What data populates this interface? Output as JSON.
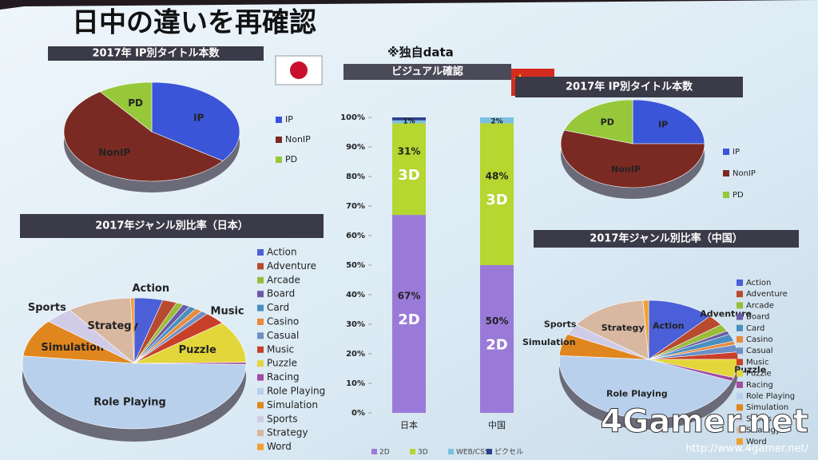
{
  "slide": {
    "title": "日中の違いを再確認",
    "note": "※独自data",
    "watermark": "4Gamer.net",
    "url": "http://www.4gamer.net/"
  },
  "chart_data": [
    {
      "type": "pie",
      "title": "2017年 IP別タイトル本数",
      "categories": [
        "IP",
        "NonIP",
        "PD"
      ],
      "values": [
        35,
        55,
        10
      ],
      "colors": [
        "#3a55d8",
        "#7a2a22",
        "#96c83a"
      ]
    },
    {
      "type": "pie",
      "title": "2017年ジャンル別比率（日本）",
      "categories": [
        "Action",
        "Adventure",
        "Arcade",
        "Board",
        "Card",
        "Casino",
        "Casual",
        "Music",
        "Puzzle",
        "Racing",
        "Role Playing",
        "Simulation",
        "Sports",
        "Strategy",
        "Word"
      ],
      "values": [
        4,
        2,
        1,
        1,
        1,
        1,
        1,
        3,
        10,
        0.5,
        50,
        9,
        4,
        9,
        0.5
      ],
      "colors": [
        "#4a5fd8",
        "#b84a2e",
        "#9bbb3a",
        "#6a5aa8",
        "#4a8fc0",
        "#e88a3a",
        "#6d8fc8",
        "#c8402a",
        "#e2d63a",
        "#a04aa0",
        "#b8d0ec",
        "#e0861e",
        "#d0cce8",
        "#d8b8a0",
        "#f0a030"
      ]
    },
    {
      "type": "bar",
      "stacked": true,
      "title": "ビジュアル確認",
      "categories": [
        "日本",
        "中国"
      ],
      "series": [
        {
          "name": "2D",
          "color": "#9a7ad8",
          "values": [
            67,
            50
          ],
          "value_labels": [
            "67%",
            "50%"
          ]
        },
        {
          "name": "3D",
          "color": "#b6d630",
          "values": [
            31,
            48
          ],
          "value_labels": [
            "31%",
            "48%"
          ]
        },
        {
          "name": "WEB/CSS",
          "color": "#7cc0e0",
          "values": [
            1,
            2
          ],
          "value_labels": [
            null,
            "2%"
          ]
        },
        {
          "name": "ピクセル",
          "color": "#2c3e8c",
          "values": [
            1,
            0
          ],
          "value_labels": [
            "1%",
            null
          ]
        }
      ],
      "ylim": [
        0,
        100
      ],
      "yticks": [
        {
          "value": 0,
          "label": "0%"
        },
        {
          "value": 10,
          "label": "10%"
        },
        {
          "value": 20,
          "label": "20%"
        },
        {
          "value": 30,
          "label": "30%"
        },
        {
          "value": 40,
          "label": "40%"
        },
        {
          "value": 50,
          "label": "50%"
        },
        {
          "value": 60,
          "label": "60%"
        },
        {
          "value": 70,
          "label": "70%"
        },
        {
          "value": 80,
          "label": "80%"
        },
        {
          "value": 90,
          "label": "90%"
        },
        {
          "value": 100,
          "label": "100%"
        }
      ]
    },
    {
      "type": "pie",
      "title": "2017年 IP別タイトル本数",
      "categories": [
        "IP",
        "NonIP",
        "PD"
      ],
      "values": [
        25,
        55,
        20
      ],
      "colors": [
        "#3a55d8",
        "#7a2a22",
        "#96c83a"
      ]
    },
    {
      "type": "pie",
      "title": "2017年ジャンル別比率（中国）",
      "categories": [
        "Action",
        "Adventure",
        "Arcade",
        "Board",
        "Card",
        "Casino",
        "Casual",
        "Music",
        "Puzzle",
        "Racing",
        "Role Playing",
        "Simulation",
        "Sports",
        "Strategy",
        "Word"
      ],
      "values": [
        12,
        3,
        2,
        1,
        2,
        1,
        2,
        2,
        5,
        1,
        45,
        6,
        3,
        14,
        1
      ],
      "colors": [
        "#4a5fd8",
        "#b84a2e",
        "#9bbb3a",
        "#6a5aa8",
        "#4a8fc0",
        "#e88a3a",
        "#6d8fc8",
        "#c8402a",
        "#e2d63a",
        "#a04aa0",
        "#b8d0ec",
        "#e0861e",
        "#d0cce8",
        "#d8b8a0",
        "#f0a030"
      ]
    }
  ]
}
